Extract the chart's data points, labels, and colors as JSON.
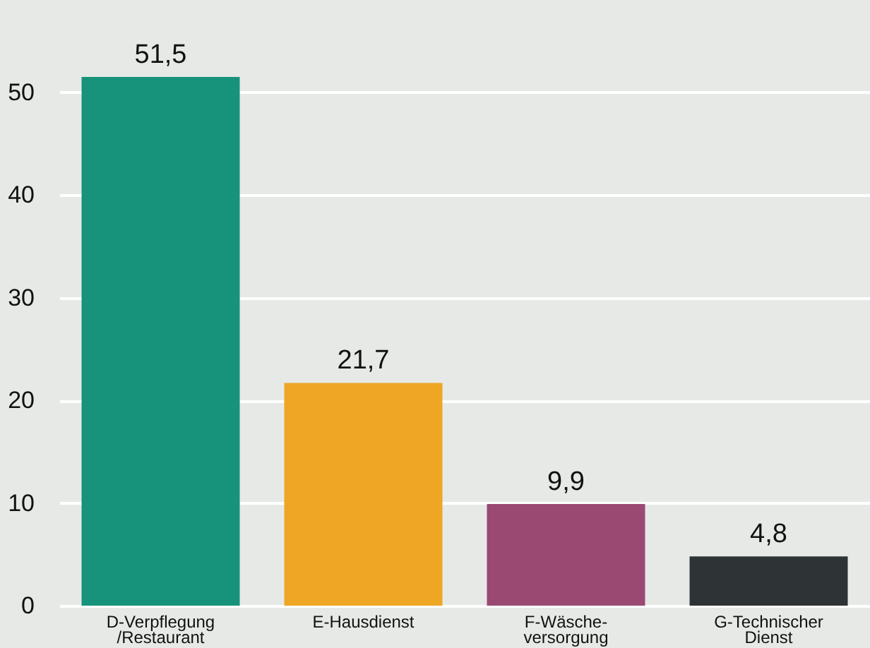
{
  "chart_data": {
    "type": "bar",
    "categories": [
      "D-Verpflegung\n/Restaurant",
      "E-Hausdienst",
      "F-Wäsche-\nversorgung",
      "G-Technischer\nDienst"
    ],
    "values": [
      51.5,
      21.7,
      9.9,
      4.8
    ],
    "colors": [
      "#16937a",
      "#eea624",
      "#9a4a72",
      "#2e3436"
    ],
    "value_labels": [
      "51,5",
      "21,7",
      "9,9",
      "4,8"
    ],
    "ylim": [
      0,
      59
    ],
    "yticks": [
      0,
      10,
      20,
      30,
      40,
      50
    ],
    "grid": "y"
  }
}
